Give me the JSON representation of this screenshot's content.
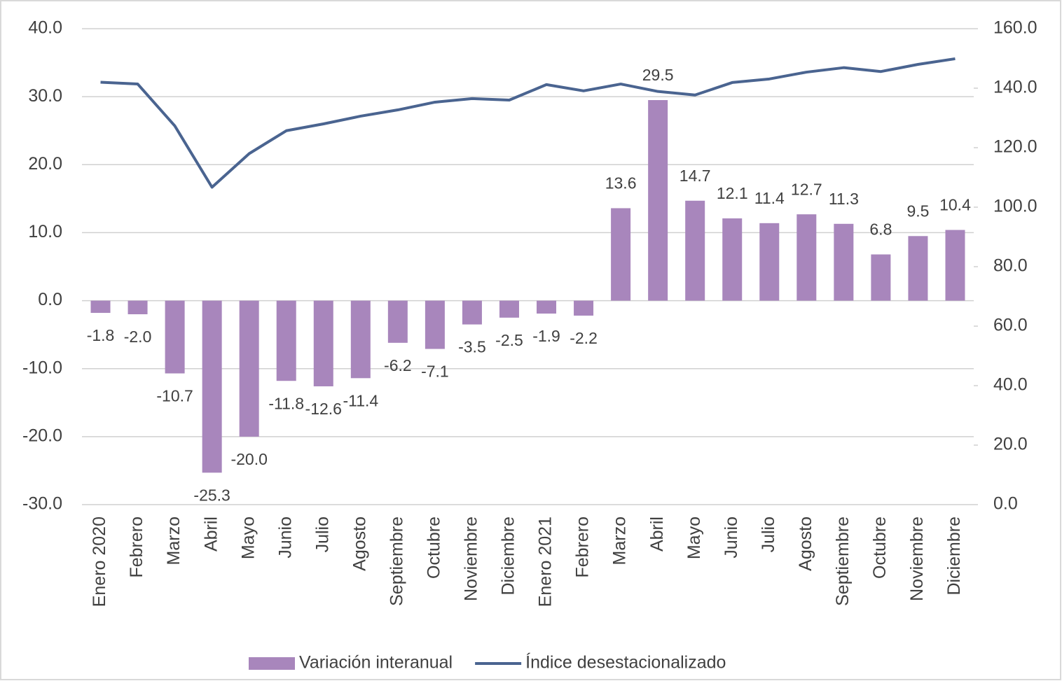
{
  "chart_data": {
    "type": "bar-line",
    "categories": [
      "Enero 2020",
      "Febrero",
      "Marzo",
      "Abril",
      "Mayo",
      "Junio",
      "Julio",
      "Agosto",
      "Septiembre",
      "Octubre",
      "Noviembre",
      "Diciembre",
      "Enero 2021",
      "Febrero",
      "Marzo",
      "Abril",
      "Mayo",
      "Junio",
      "Julio",
      "Agosto",
      "Septiembre",
      "Octubre",
      "Noviembre",
      "Diciembre"
    ],
    "series": [
      {
        "name": "Variación interanual",
        "type": "bar",
        "color": "#a886bc",
        "values": [
          -1.8,
          -2.0,
          -10.7,
          -25.3,
          -20.0,
          -11.8,
          -12.6,
          -11.4,
          -6.2,
          -7.1,
          -3.5,
          -2.5,
          -1.9,
          -2.2,
          13.6,
          29.5,
          14.7,
          12.1,
          11.4,
          12.7,
          11.3,
          6.8,
          9.5,
          10.4
        ],
        "value_labels": [
          "-1.8",
          "-2.0",
          "-10.7",
          "-25.3",
          "-20.0",
          "-11.8",
          "-12.6",
          "-11.4",
          "-6.2",
          "-7.1",
          "-3.5",
          "-2.5",
          "-1.9",
          "-2.2",
          "13.6",
          "29.5",
          "14.7",
          "12.1",
          "11.4",
          "12.7",
          "11.3",
          "6.8",
          "9.5",
          "10.4"
        ]
      },
      {
        "name": "Índice desestacionalizado",
        "type": "line",
        "axis": "y2",
        "color": "#4a6490",
        "values": [
          142,
          141.4,
          127.3,
          106.7,
          118,
          125.7,
          128,
          130.6,
          132.7,
          135.3,
          136.5,
          136,
          141.2,
          139.1,
          141.4,
          138.9,
          137.7,
          141.9,
          143.1,
          145.4,
          146.9,
          145.6,
          148,
          149.9
        ]
      }
    ],
    "ylim": [
      -30,
      40
    ],
    "yticks": [
      {
        "value": -30,
        "label": "-30.0"
      },
      {
        "value": -20,
        "label": "-20.0"
      },
      {
        "value": -10,
        "label": "-10.0"
      },
      {
        "value": 0,
        "label": "0.0"
      },
      {
        "value": 10,
        "label": "10.0"
      },
      {
        "value": 20,
        "label": "20.0"
      },
      {
        "value": 30,
        "label": "30.0"
      },
      {
        "value": 40,
        "label": "40.0"
      }
    ],
    "y2lim": [
      0,
      160
    ],
    "y2ticks": [
      {
        "value": 0,
        "label": "0.0"
      },
      {
        "value": 20,
        "label": "20.0"
      },
      {
        "value": 40,
        "label": "40.0"
      },
      {
        "value": 60,
        "label": "60.0"
      },
      {
        "value": 80,
        "label": "80.0"
      },
      {
        "value": 100,
        "label": "100.0"
      },
      {
        "value": 120,
        "label": "120.0"
      },
      {
        "value": 140,
        "label": "140.0"
      },
      {
        "value": 160,
        "label": "160.0"
      }
    ],
    "grid": true,
    "legend": "bottom"
  }
}
